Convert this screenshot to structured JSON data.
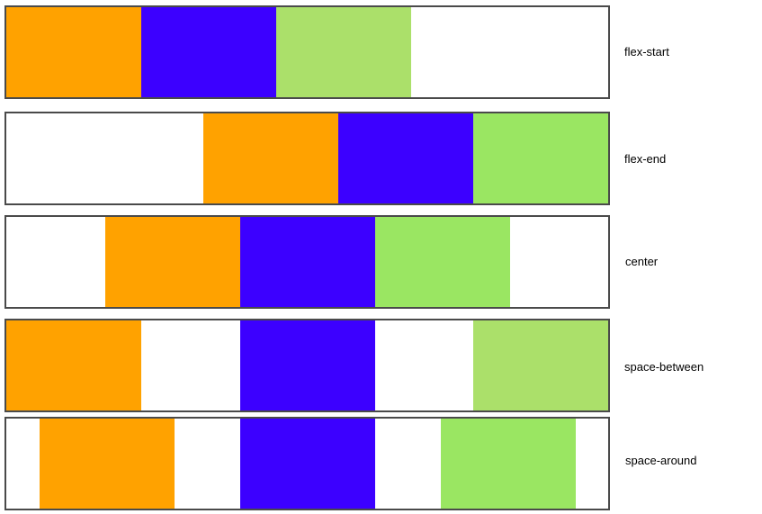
{
  "colors": {
    "orange": "#ffa200",
    "blue": "#3c00ff",
    "green": "#9ae662",
    "green_soft": "#abe06a",
    "border": "#4a4a4a"
  },
  "rows": [
    {
      "label": "flex-start",
      "justify": "flex-start",
      "items": [
        "#ffa200",
        "#3c00ff",
        "#abe06a"
      ]
    },
    {
      "label": "flex-end",
      "justify": "flex-end",
      "items": [
        "#ffa200",
        "#3c00ff",
        "#9ae662"
      ]
    },
    {
      "label": "center",
      "justify": "center",
      "items": [
        "#ffa200",
        "#3c00ff",
        "#9ae662"
      ]
    },
    {
      "label": "space-between",
      "justify": "space-between",
      "items": [
        "#ffa200",
        "#3c00ff",
        "#abe06a"
      ]
    },
    {
      "label": "space-around",
      "justify": "space-around",
      "items": [
        "#ffa200",
        "#3c00ff",
        "#9ae662"
      ]
    }
  ]
}
